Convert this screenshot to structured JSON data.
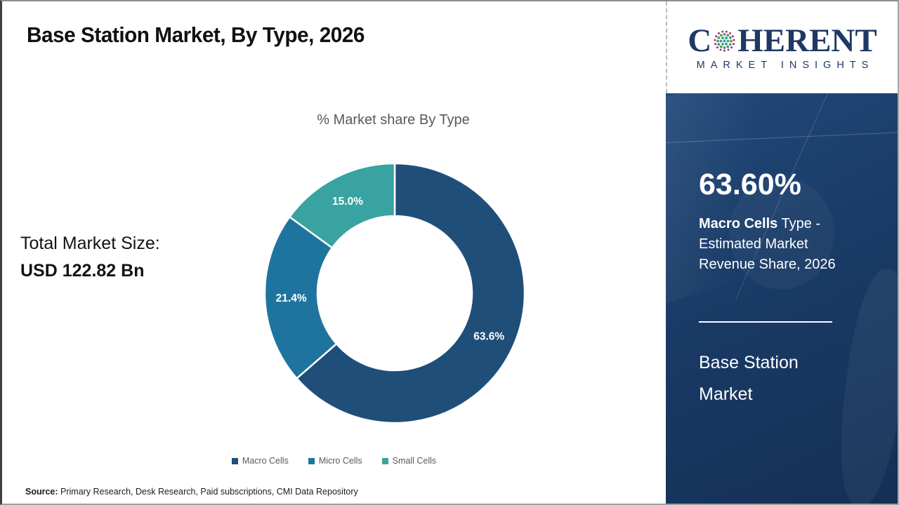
{
  "header": {
    "title": "Base Station Market, By Type, 2026"
  },
  "logo": {
    "brand_first_letter": "C",
    "brand_rest": "HERENT",
    "tagline": "MARKET INSIGHTS",
    "brand_color": "#1F3864",
    "globe_dot_colors": [
      "#2B9AA8",
      "#52A347",
      "#B02A70"
    ]
  },
  "left_panel": {
    "total_label": "Total Market Size:",
    "total_value": "USD 122.82 Bn"
  },
  "chart_data": {
    "type": "pie",
    "subtype": "donut",
    "title": "% Market share By Type",
    "categories": [
      "Macro Cells",
      "Micro Cells",
      "Small Cells"
    ],
    "values": [
      63.6,
      21.4,
      15.0
    ],
    "labels": [
      "63.6%",
      "21.4%",
      "15.0%"
    ],
    "colors": [
      "#1F4E79",
      "#1F749F",
      "#38A3A0"
    ],
    "start_angle_deg": 0,
    "direction": "clockwise",
    "legend_position": "bottom",
    "label_color": "#FFFFFF",
    "title_color": "#595959"
  },
  "sidebar": {
    "stat_value": "63.60%",
    "stat_desc_bold": "Macro Cells",
    "stat_desc_rest": " Type - Estimated Market Revenue Share, 2026",
    "market_name": "Base Station Market",
    "background_color": "#1A3C68"
  },
  "footer": {
    "source_label": "Source:",
    "source_text": " Primary Research, Desk Research, Paid subscriptions, CMI Data Repository"
  }
}
